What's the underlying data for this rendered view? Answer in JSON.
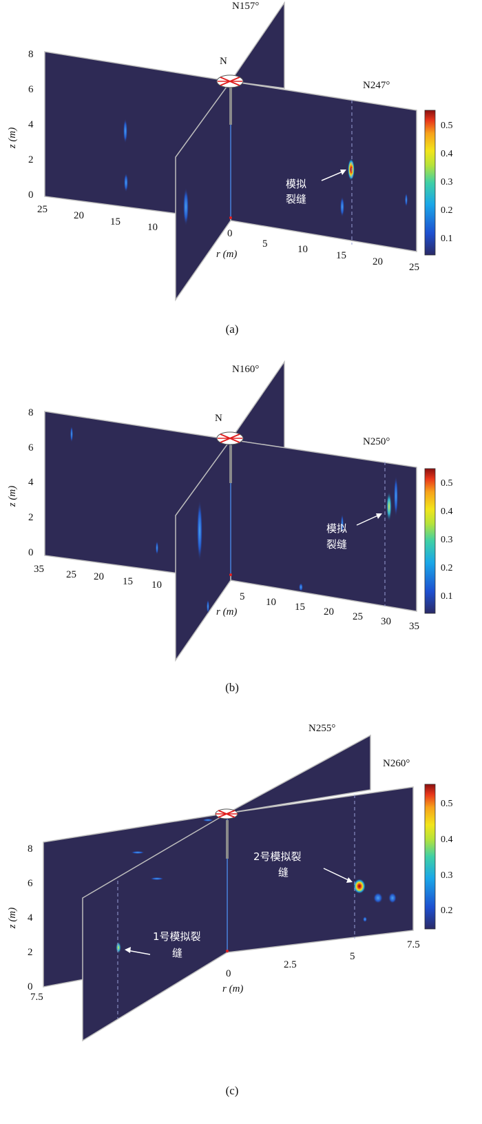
{
  "panels": [
    {
      "caption": "(a)",
      "directions": {
        "north": "N",
        "left": "N157°",
        "right": "N247°"
      },
      "z_label": "z (m)",
      "r_label": "r (m)",
      "z_ticks": [
        "0",
        "2",
        "4",
        "6",
        "8"
      ],
      "left_r_ticks": [
        "25",
        "20",
        "15",
        "10"
      ],
      "right_r_ticks": [
        "0",
        "5",
        "10",
        "15",
        "20",
        "25"
      ],
      "colorbar_ticks": [
        "0.1",
        "0.2",
        "0.3",
        "0.4",
        "0.5"
      ],
      "annotations": [
        {
          "line1": "模拟",
          "line2": "裂缝"
        }
      ]
    },
    {
      "caption": "(b)",
      "directions": {
        "north": "N",
        "left": "N160°",
        "right": "N250°"
      },
      "z_label": "z (m)",
      "r_label": "r (m)",
      "z_ticks": [
        "0",
        "2",
        "4",
        "6",
        "8"
      ],
      "left_r_ticks": [
        "35",
        "25",
        "20",
        "15",
        "10"
      ],
      "right_r_ticks": [
        "5",
        "10",
        "15",
        "20",
        "25",
        "30",
        "35"
      ],
      "colorbar_ticks": [
        "0.1",
        "0.2",
        "0.3",
        "0.4",
        "0.5"
      ],
      "annotations": [
        {
          "line1": "模拟",
          "line2": "裂缝"
        }
      ]
    },
    {
      "caption": "(c)",
      "directions": {
        "left": "N255°",
        "right": "N260°"
      },
      "z_label": "z (m)",
      "r_label": "r (m)",
      "z_ticks": [
        "0",
        "2",
        "4",
        "6",
        "8"
      ],
      "left_r_ticks": [
        "7.5"
      ],
      "right_r_ticks": [
        "0",
        "2.5",
        "5",
        "7.5"
      ],
      "colorbar_ticks": [
        "0.2",
        "0.3",
        "0.4",
        "0.5"
      ],
      "annotations": [
        {
          "line1": "1号模拟裂",
          "line2": "缝"
        },
        {
          "line1": "2号模拟裂",
          "line2": "缝"
        }
      ]
    }
  ],
  "colors": {
    "background_field": "#2e2a55",
    "frame": "#bdbdbd",
    "borehole": "#8a8a8a",
    "marker": "#e02020"
  }
}
